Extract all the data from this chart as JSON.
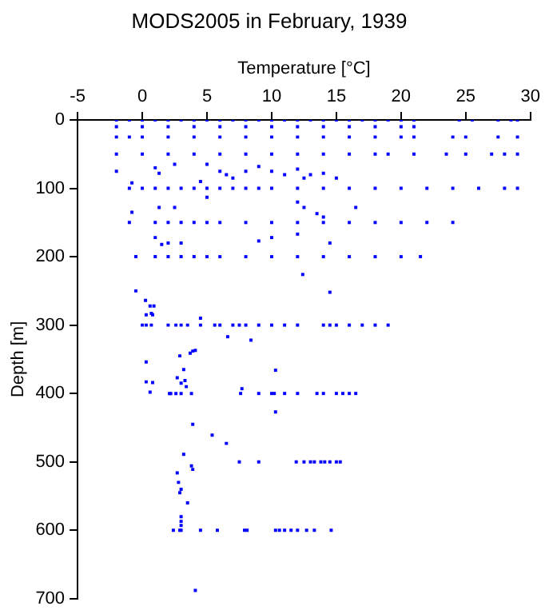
{
  "chart_data": {
    "type": "scatter",
    "title": "MODS2005 in February, 1939",
    "xlabel": "Temperature [°C]",
    "ylabel": "Depth [m]",
    "xlim": [
      -5,
      30
    ],
    "ylim": [
      700,
      0
    ],
    "xticks": [
      -5,
      0,
      5,
      10,
      15,
      20,
      25,
      30
    ],
    "yticks": [
      0,
      100,
      200,
      300,
      400,
      500,
      600,
      700
    ],
    "grid": false,
    "legend": false,
    "marker": "square",
    "series": [
      {
        "color": "#0000ff",
        "x": [
          -2,
          -1,
          0,
          1,
          2,
          3,
          4,
          5,
          6,
          7,
          8,
          9,
          10,
          11,
          12,
          13,
          14,
          15,
          16,
          17,
          18,
          19,
          20,
          21,
          24.5,
          25.5,
          27.5,
          28.5,
          29,
          -2,
          0,
          2,
          4,
          6,
          8,
          10,
          12,
          14,
          16,
          18,
          20,
          21,
          -2,
          -1,
          0,
          2,
          4,
          6,
          8,
          10,
          12,
          14,
          16,
          18,
          20,
          21,
          24,
          25,
          27.5,
          29,
          -2,
          0,
          2,
          4,
          6,
          8,
          10,
          12,
          14,
          16,
          18,
          19,
          21,
          23.5,
          25,
          27,
          28,
          29,
          1,
          2.5,
          5,
          6,
          6.5,
          8,
          9,
          10,
          11,
          12,
          13,
          14,
          15,
          12.5,
          7,
          -2,
          1.3,
          4.5,
          -1,
          0,
          1,
          2,
          3,
          4,
          5,
          6,
          7,
          8,
          9,
          10,
          12,
          14,
          16,
          18,
          20,
          22,
          24,
          26,
          28,
          29,
          -0.8,
          5,
          2.5,
          -0.8,
          1.3,
          12,
          12.5,
          13.5,
          16.5,
          14,
          -1,
          1,
          2,
          3,
          4,
          5,
          6,
          8,
          10,
          12,
          14,
          16,
          18,
          20,
          22,
          24,
          1,
          1.5,
          2,
          3,
          9,
          12,
          10,
          14.5,
          12.4,
          -0.5,
          1,
          2,
          3,
          4,
          5,
          6,
          8,
          10,
          12,
          14,
          16,
          18,
          20,
          21.5,
          -0.5,
          14.5,
          0.25,
          0.6,
          0.7,
          4.5,
          0.3,
          0.8,
          0.9,
          0,
          0.3,
          0.7,
          2,
          2.6,
          3,
          3.5,
          4.5,
          5.6,
          6,
          7,
          7.5,
          8,
          9,
          10,
          11,
          12,
          14,
          14.5,
          15,
          16,
          17,
          18,
          19,
          6.6,
          8.4,
          0.3,
          0.3,
          0.8,
          0.6,
          2.7,
          3,
          3.3,
          2.9,
          3.7,
          3.9,
          4.1,
          3.2,
          3.4,
          2.1,
          2.2,
          2.6,
          3,
          3.8,
          7.6,
          9,
          10,
          10.2,
          11,
          12,
          13.5,
          14,
          15,
          15.5,
          16,
          16.5,
          10.3,
          10.3,
          7.7,
          3.9,
          5.4,
          6.5,
          7.5,
          9,
          11.9,
          12.5,
          13,
          13.3,
          13.8,
          14.1,
          14.5,
          15,
          15.3,
          3.2,
          3.8,
          3.9,
          2.7,
          2.8,
          3,
          2.9,
          3.5,
          2.4,
          2.9,
          3,
          4.5,
          5.8,
          7.9,
          8.1,
          10.3,
          10.6,
          11,
          11.5,
          12,
          12.7,
          13.3,
          14.6,
          3,
          3,
          3,
          4.1
        ],
        "values": [
          0,
          0,
          0,
          0,
          0,
          0,
          0,
          0,
          0,
          0,
          0,
          0,
          0,
          0,
          0,
          0,
          0,
          0,
          0,
          0,
          0,
          0,
          0,
          0,
          0,
          0,
          0,
          0,
          0,
          10,
          10,
          10,
          10,
          10,
          10,
          10,
          10,
          10,
          10,
          10,
          10,
          10,
          25,
          25,
          25,
          25,
          25,
          25,
          25,
          25,
          25,
          25,
          25,
          25,
          25,
          25,
          25,
          25,
          25,
          25,
          50,
          50,
          50,
          50,
          50,
          50,
          50,
          50,
          50,
          50,
          50,
          50,
          50,
          50,
          50,
          50,
          50,
          50,
          70,
          65,
          65,
          75,
          80,
          75,
          68,
          75,
          80,
          72,
          80,
          78,
          85,
          85,
          85,
          75,
          78,
          90,
          100,
          100,
          100,
          100,
          100,
          100,
          100,
          100,
          100,
          100,
          100,
          100,
          100,
          100,
          100,
          100,
          100,
          100,
          100,
          100,
          100,
          100,
          92,
          113,
          128,
          135,
          128,
          120,
          128,
          137,
          128,
          142,
          150,
          150,
          150,
          150,
          150,
          150,
          150,
          150,
          150,
          150,
          150,
          150,
          150,
          150,
          150,
          150,
          172,
          182,
          180,
          180,
          177,
          167,
          172,
          180,
          226,
          200,
          200,
          200,
          200,
          200,
          200,
          200,
          200,
          200,
          200,
          200,
          200,
          200,
          200,
          200,
          250,
          252,
          264,
          272,
          283,
          290,
          285,
          285,
          272,
          300,
          300,
          300,
          300,
          300,
          300,
          300,
          300,
          300,
          300,
          300,
          300,
          300,
          300,
          300,
          300,
          300,
          300,
          300,
          300,
          300,
          300,
          300,
          300,
          317,
          322,
          354,
          383,
          384,
          398,
          377,
          385,
          381,
          345,
          341,
          338,
          337,
          365,
          390,
          400,
          400,
          400,
          400,
          400,
          400,
          400,
          400,
          400,
          400,
          400,
          400,
          400,
          400,
          400,
          400,
          400,
          366,
          427,
          393,
          445,
          461,
          473,
          500,
          500,
          500,
          500,
          500,
          500,
          500,
          500,
          500,
          500,
          500,
          489,
          506,
          511,
          516,
          530,
          540,
          545,
          560,
          600,
          600,
          600,
          600,
          600,
          600,
          600,
          600,
          600,
          600,
          600,
          600,
          600,
          600,
          600,
          580,
          587,
          593,
          688
        ]
      }
    ]
  }
}
